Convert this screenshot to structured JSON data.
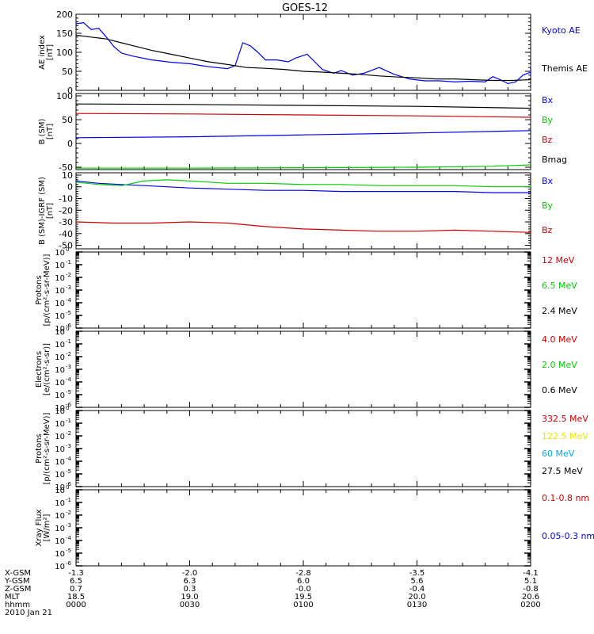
{
  "title": "GOES-12",
  "colors": {
    "black": "#000000",
    "red": "#cc0000",
    "green": "#00cc00",
    "blue": "#0000ee",
    "yellow": "#e6e600",
    "cyan": "#00aaee"
  },
  "time_axis": {
    "row_labels": [
      "X-GSM",
      "Y-GSM",
      "Z-GSM",
      "MLT",
      "hhmm",
      "2010 Jan 21"
    ],
    "columns": [
      {
        "x_gsm": "-1.3",
        "y_gsm": "6.5",
        "z_gsm": "0.7",
        "mlt": "18.5",
        "hhmm": "0000"
      },
      {
        "x_gsm": "-2.0",
        "y_gsm": "6.3",
        "z_gsm": "0.3",
        "mlt": "19.0",
        "hhmm": "0030"
      },
      {
        "x_gsm": "-2.8",
        "y_gsm": "6.0",
        "z_gsm": "-0.0",
        "mlt": "19.5",
        "hhmm": "0100"
      },
      {
        "x_gsm": "-3.5",
        "y_gsm": "5.6",
        "z_gsm": "-0.4",
        "mlt": "20.0",
        "hhmm": "0130"
      },
      {
        "x_gsm": "-4.1",
        "y_gsm": "5.1",
        "z_gsm": "-0.8",
        "mlt": "20.6",
        "hhmm": "0200"
      }
    ]
  },
  "chart_data": [
    {
      "type": "line",
      "id": "ae",
      "ylabel": [
        "AE index",
        "[nT]"
      ],
      "ylim": [
        0,
        200
      ],
      "yticks": [
        0,
        50,
        100,
        150,
        200
      ],
      "yscale": "linear",
      "x_range_minutes": [
        0,
        120
      ],
      "series": [
        {
          "name": "Kyoto AE",
          "color": "#0000ee",
          "points": [
            [
              0,
              175
            ],
            [
              2,
              178
            ],
            [
              4,
              160
            ],
            [
              6,
              163
            ],
            [
              8,
              140
            ],
            [
              10,
              115
            ],
            [
              12,
              98
            ],
            [
              15,
              90
            ],
            [
              20,
              80
            ],
            [
              25,
              74
            ],
            [
              30,
              70
            ],
            [
              35,
              62
            ],
            [
              40,
              57
            ],
            [
              42,
              65
            ],
            [
              44,
              125
            ],
            [
              46,
              117
            ],
            [
              48,
              100
            ],
            [
              50,
              80
            ],
            [
              53,
              80
            ],
            [
              56,
              75
            ],
            [
              58,
              85
            ],
            [
              61,
              95
            ],
            [
              63,
              75
            ],
            [
              65,
              55
            ],
            [
              68,
              45
            ],
            [
              70,
              52
            ],
            [
              73,
              40
            ],
            [
              76,
              45
            ],
            [
              80,
              60
            ],
            [
              84,
              42
            ],
            [
              88,
              30
            ],
            [
              92,
              25
            ],
            [
              96,
              25
            ],
            [
              100,
              22
            ],
            [
              104,
              24
            ],
            [
              108,
              22
            ],
            [
              110,
              36
            ],
            [
              112,
              28
            ],
            [
              114,
              18
            ],
            [
              116,
              22
            ],
            [
              118,
              40
            ],
            [
              120,
              48
            ],
            [
              122,
              58
            ],
            [
              124,
              52
            ],
            [
              126,
              38
            ],
            [
              128,
              45
            ],
            [
              130,
              52
            ]
          ]
        },
        {
          "name": "Themis AE",
          "color": "#000000",
          "points": [
            [
              0,
              145
            ],
            [
              4,
              140
            ],
            [
              8,
              135
            ],
            [
              12,
              125
            ],
            [
              16,
              115
            ],
            [
              20,
              105
            ],
            [
              25,
              95
            ],
            [
              30,
              85
            ],
            [
              35,
              75
            ],
            [
              40,
              68
            ],
            [
              45,
              60
            ],
            [
              50,
              58
            ],
            [
              55,
              55
            ],
            [
              60,
              50
            ],
            [
              65,
              48
            ],
            [
              70,
              45
            ],
            [
              75,
              42
            ],
            [
              80,
              38
            ],
            [
              85,
              35
            ],
            [
              90,
              33
            ],
            [
              95,
              30
            ],
            [
              100,
              30
            ],
            [
              105,
              28
            ],
            [
              110,
              26
            ],
            [
              115,
              26
            ],
            [
              120,
              28
            ],
            [
              125,
              30
            ],
            [
              130,
              32
            ]
          ]
        }
      ]
    },
    {
      "type": "line",
      "id": "bsm",
      "ylabel": [
        "B (SM)",
        "[nT]"
      ],
      "ylim": [
        -55,
        105
      ],
      "yticks": [
        -50,
        0,
        50,
        100
      ],
      "yscale": "linear",
      "series": [
        {
          "name": "Bx",
          "color": "#0000ee",
          "points": [
            [
              0,
              12
            ],
            [
              30,
              14
            ],
            [
              60,
              18
            ],
            [
              90,
              22
            ],
            [
              130,
              27
            ]
          ]
        },
        {
          "name": "By",
          "color": "#00cc00",
          "points": [
            [
              0,
              -52
            ],
            [
              30,
              -52
            ],
            [
              60,
              -51
            ],
            [
              90,
              -50
            ],
            [
              110,
              -48
            ],
            [
              130,
              -45
            ]
          ]
        },
        {
          "name": "Bz",
          "color": "#cc0000",
          "points": [
            [
              0,
              63
            ],
            [
              30,
              62
            ],
            [
              60,
              60
            ],
            [
              90,
              58
            ],
            [
              130,
              55
            ]
          ]
        },
        {
          "name": "Bmag",
          "color": "#000000",
          "points": [
            [
              0,
              83
            ],
            [
              30,
              82
            ],
            [
              60,
              80
            ],
            [
              90,
              78
            ],
            [
              130,
              74
            ]
          ]
        }
      ]
    },
    {
      "type": "line",
      "id": "bigrf",
      "ylabel": [
        "B (SM)-IGRF (SM)",
        "[nT]"
      ],
      "ylim": [
        -53,
        12
      ],
      "yticks": [
        -50,
        -40,
        -30,
        -20,
        -10,
        0,
        10
      ],
      "yscale": "linear",
      "series": [
        {
          "name": "Bx",
          "color": "#0000ee",
          "points": [
            [
              0,
              5
            ],
            [
              6,
              3
            ],
            [
              12,
              2
            ],
            [
              18,
              1
            ],
            [
              24,
              0
            ],
            [
              30,
              -1
            ],
            [
              40,
              -2
            ],
            [
              50,
              -3
            ],
            [
              60,
              -3
            ],
            [
              70,
              -4
            ],
            [
              80,
              -4
            ],
            [
              90,
              -4
            ],
            [
              100,
              -4
            ],
            [
              110,
              -5
            ],
            [
              120,
              -5
            ],
            [
              130,
              -5
            ]
          ]
        },
        {
          "name": "By",
          "color": "#00cc00",
          "points": [
            [
              0,
              4
            ],
            [
              6,
              2
            ],
            [
              12,
              1
            ],
            [
              18,
              5
            ],
            [
              24,
              6
            ],
            [
              30,
              5
            ],
            [
              40,
              3
            ],
            [
              50,
              3
            ],
            [
              60,
              2
            ],
            [
              70,
              2
            ],
            [
              80,
              1
            ],
            [
              90,
              1
            ],
            [
              100,
              1
            ],
            [
              110,
              0
            ],
            [
              120,
              0
            ],
            [
              130,
              1
            ]
          ]
        },
        {
          "name": "Bz",
          "color": "#cc0000",
          "points": [
            [
              0,
              -30
            ],
            [
              10,
              -31
            ],
            [
              20,
              -31
            ],
            [
              30,
              -30
            ],
            [
              40,
              -31
            ],
            [
              50,
              -34
            ],
            [
              60,
              -36
            ],
            [
              70,
              -37
            ],
            [
              80,
              -38
            ],
            [
              90,
              -38
            ],
            [
              100,
              -37
            ],
            [
              110,
              -38
            ],
            [
              120,
              -39
            ],
            [
              130,
              -40
            ]
          ]
        }
      ]
    },
    {
      "type": "line",
      "id": "p1",
      "ylabel": [
        "Protons",
        "[p/(cm²-s-sr-MeV)]"
      ],
      "yscale": "log",
      "ylim": [
        -6,
        0
      ],
      "series": [
        {
          "name": "12 MeV",
          "color": "#cc0000"
        },
        {
          "name": "6.5 MeV",
          "color": "#00cc00"
        },
        {
          "name": "2.4 MeV",
          "color": "#000000"
        }
      ]
    },
    {
      "type": "line",
      "id": "e1",
      "ylabel": [
        "Electrons",
        "[e/(cm²-s-sr)]"
      ],
      "yscale": "log",
      "ylim": [
        -6,
        0
      ],
      "series": [
        {
          "name": "4.0 MeV",
          "color": "#cc0000"
        },
        {
          "name": "2.0 MeV",
          "color": "#00cc00"
        },
        {
          "name": "0.6 MeV",
          "color": "#000000"
        }
      ]
    },
    {
      "type": "line",
      "id": "p2",
      "ylabel": [
        "Protons",
        "[p/(cm²-s-sr-MeV)]"
      ],
      "yscale": "log",
      "ylim": [
        -6,
        0
      ],
      "series": [
        {
          "name": "332.5 MeV",
          "color": "#cc0000"
        },
        {
          "name": "122.5 MeV",
          "color": "#e6e600"
        },
        {
          "name": "60 MeV",
          "color": "#00aaee"
        },
        {
          "name": "27.5 MeV",
          "color": "#000000"
        }
      ]
    },
    {
      "type": "line",
      "id": "x1",
      "ylabel": [
        "Xray Flux",
        "[W/m²]"
      ],
      "yscale": "log",
      "ylim": [
        -6,
        0
      ],
      "series": [
        {
          "name": "0.1-0.8 nm",
          "color": "#cc0000"
        },
        {
          "name": "0.05-0.3 nm",
          "color": "#0000ee"
        }
      ]
    }
  ]
}
